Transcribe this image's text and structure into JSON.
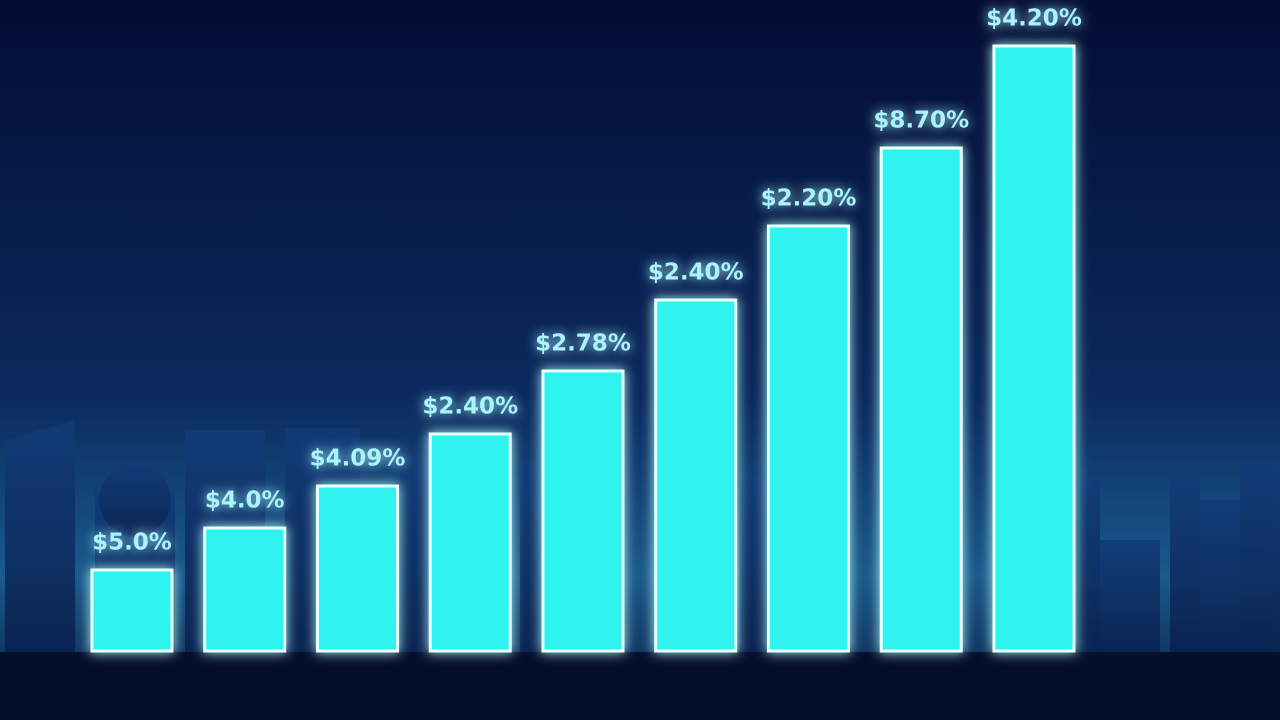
{
  "chart_data": {
    "type": "bar",
    "categories": [
      null,
      null,
      null,
      null,
      null,
      null,
      null,
      null,
      null
    ],
    "values": [
      81,
      123,
      165,
      217,
      280,
      351,
      425,
      503,
      605
    ],
    "bar_labels": [
      "$5.0%",
      "$4.0%",
      "$4.09%",
      "$2.40%",
      "$2.78%",
      "$2.40%",
      "$2.20%",
      "$8.70%",
      "$4.20%"
    ],
    "color": "#2ff3ee",
    "ylim": [
      0,
      605
    ]
  }
}
